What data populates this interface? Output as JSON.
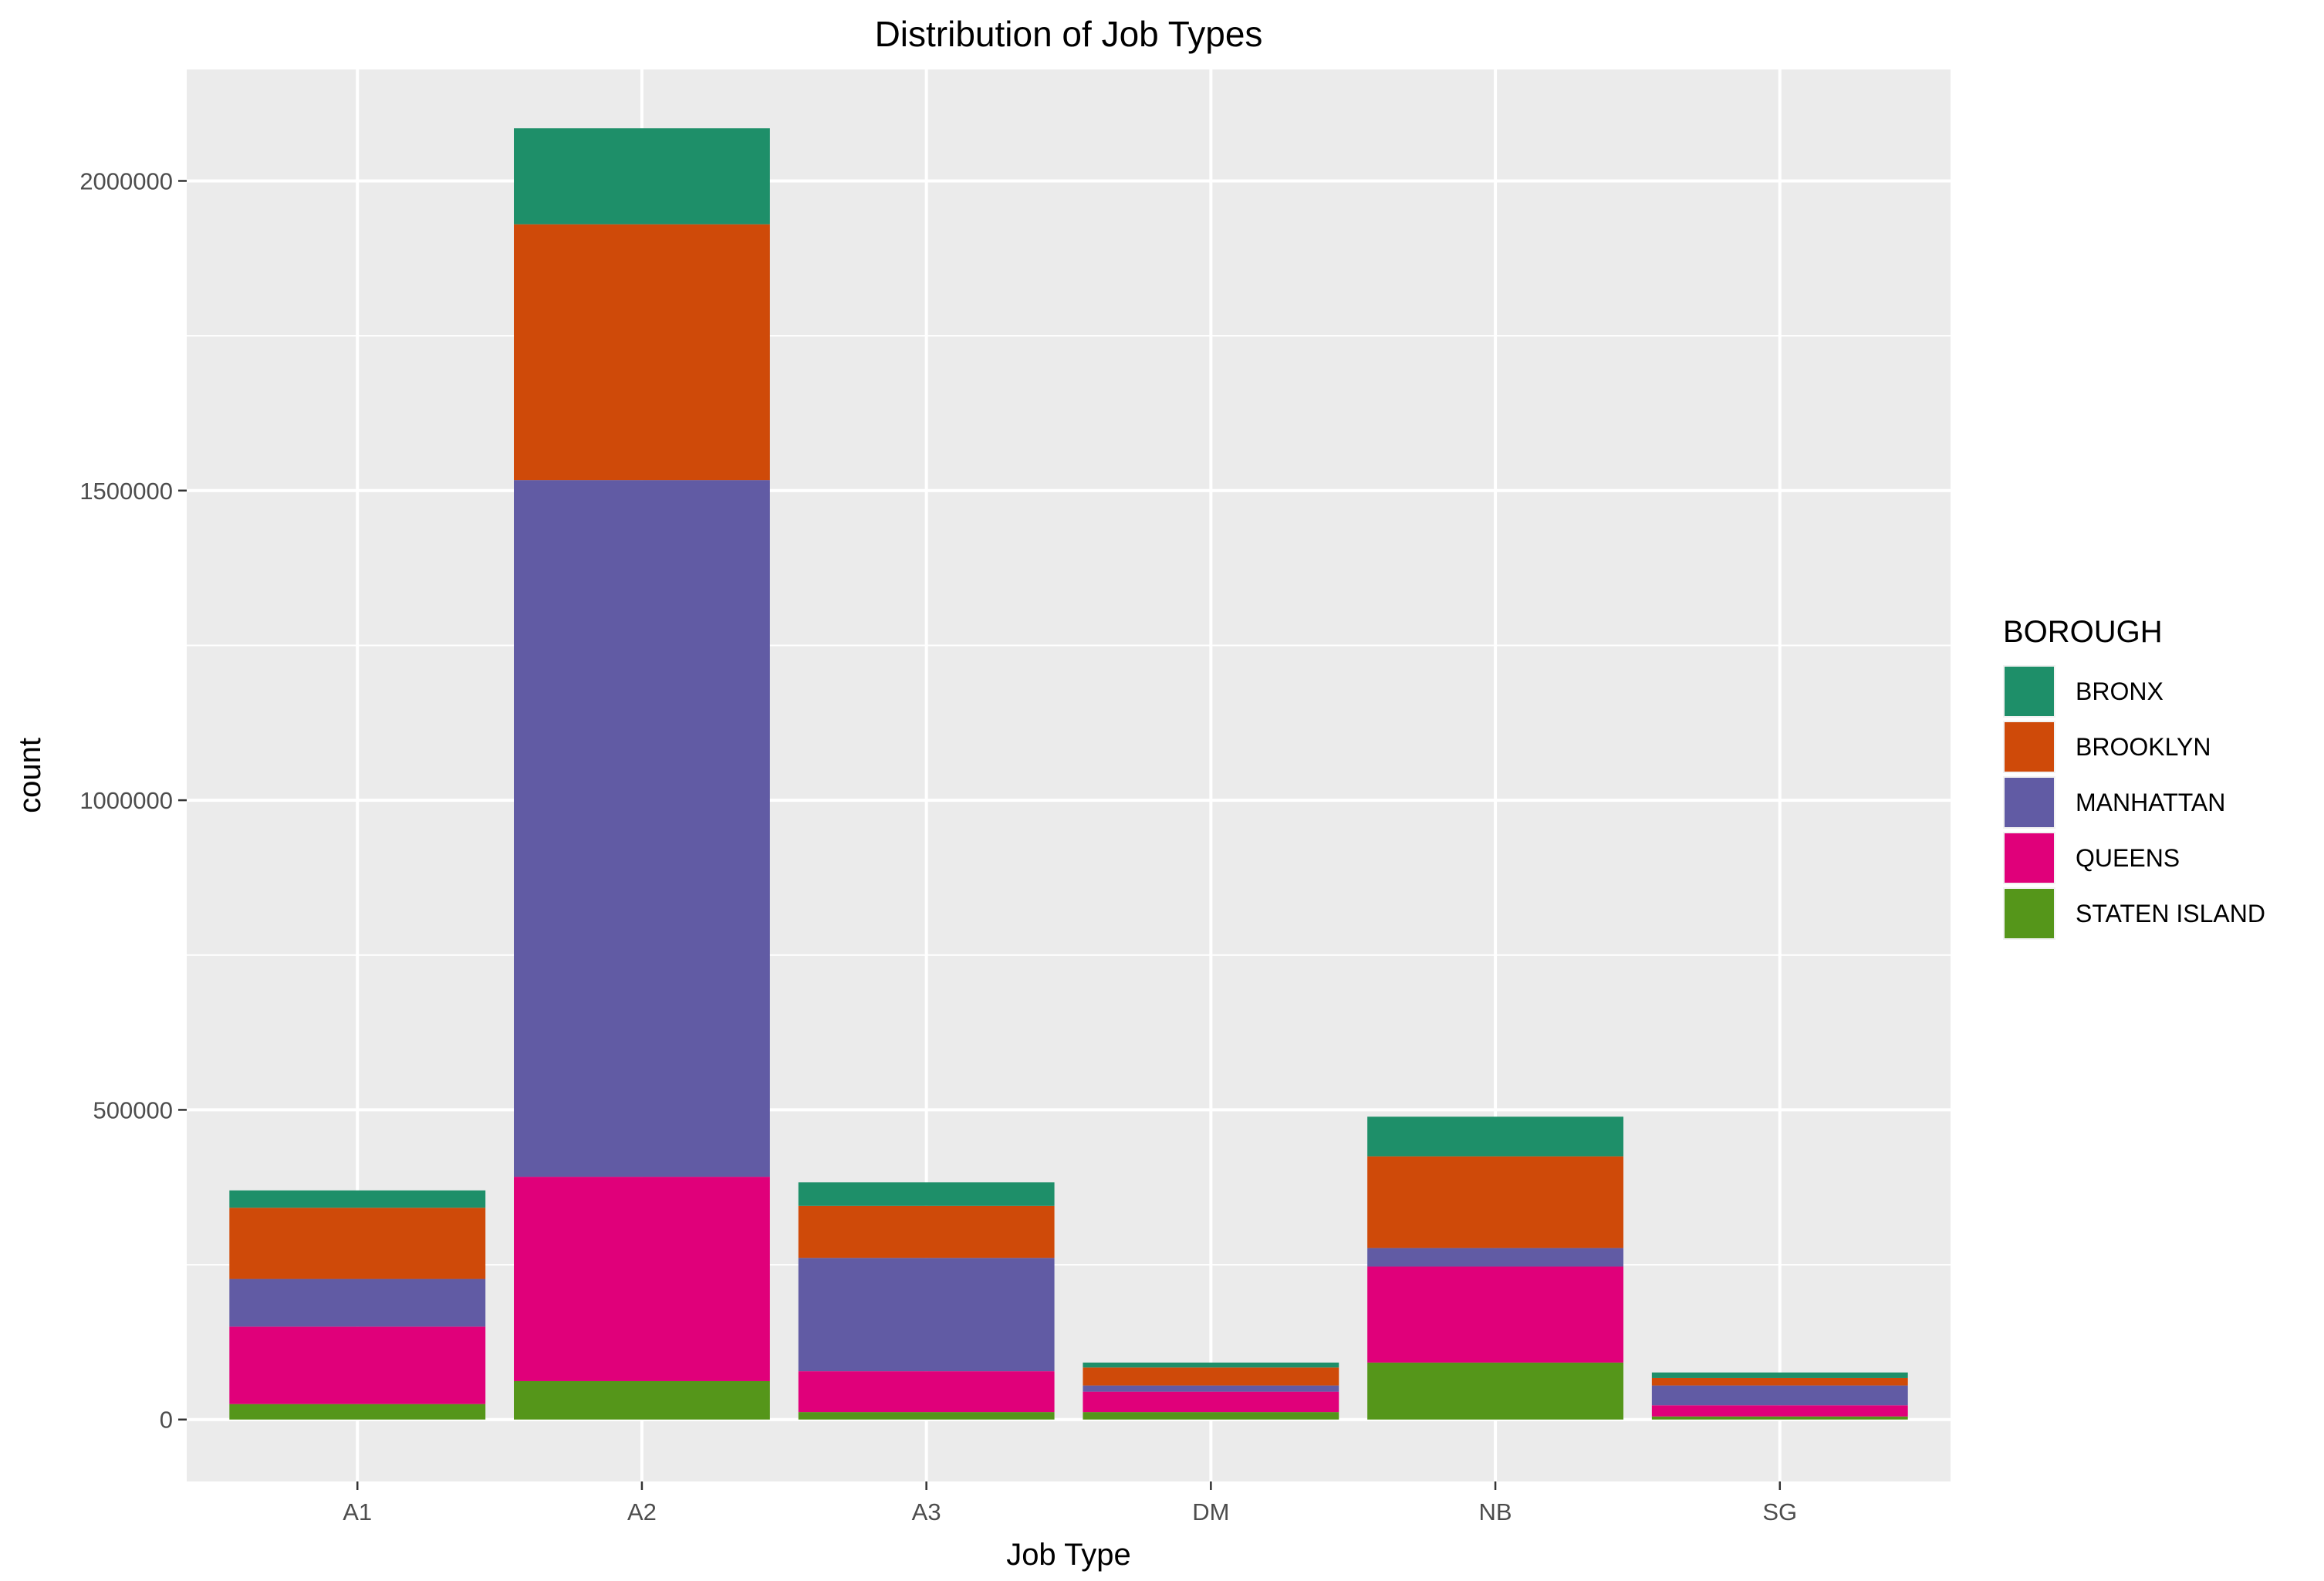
{
  "chart_data": {
    "type": "bar",
    "stacked": true,
    "title": "Distribution of Job Types",
    "xlabel": "Job Type",
    "ylabel": "count",
    "categories": [
      "A1",
      "A2",
      "A3",
      "DM",
      "NB",
      "SG"
    ],
    "ylim": [
      -100000,
      2180000
    ],
    "yticks": [
      0,
      500000,
      1000000,
      1500000,
      2000000
    ],
    "ytick_labels": [
      "0",
      "500000",
      "1000000",
      "1500000",
      "2000000"
    ],
    "grid": true,
    "legend": {
      "title": "BOROUGH",
      "position": "right"
    },
    "series": [
      {
        "name": "STATEN ISLAND",
        "color": "#55961a",
        "values": [
          25000,
          62000,
          12000,
          12000,
          92000,
          5000
        ]
      },
      {
        "name": "QUEENS",
        "color": "#e0007a",
        "values": [
          125000,
          330000,
          66000,
          33000,
          155000,
          18000
        ]
      },
      {
        "name": "MANHATTAN",
        "color": "#615ba4",
        "values": [
          77000,
          1125000,
          183000,
          10000,
          30000,
          32000
        ]
      },
      {
        "name": "BROOKLYN",
        "color": "#cf4a09",
        "values": [
          115000,
          413000,
          84000,
          29000,
          148000,
          12000
        ]
      },
      {
        "name": "BRONX",
        "color": "#1e8f69",
        "values": [
          28000,
          155000,
          38000,
          8000,
          64000,
          9000
        ]
      }
    ]
  }
}
